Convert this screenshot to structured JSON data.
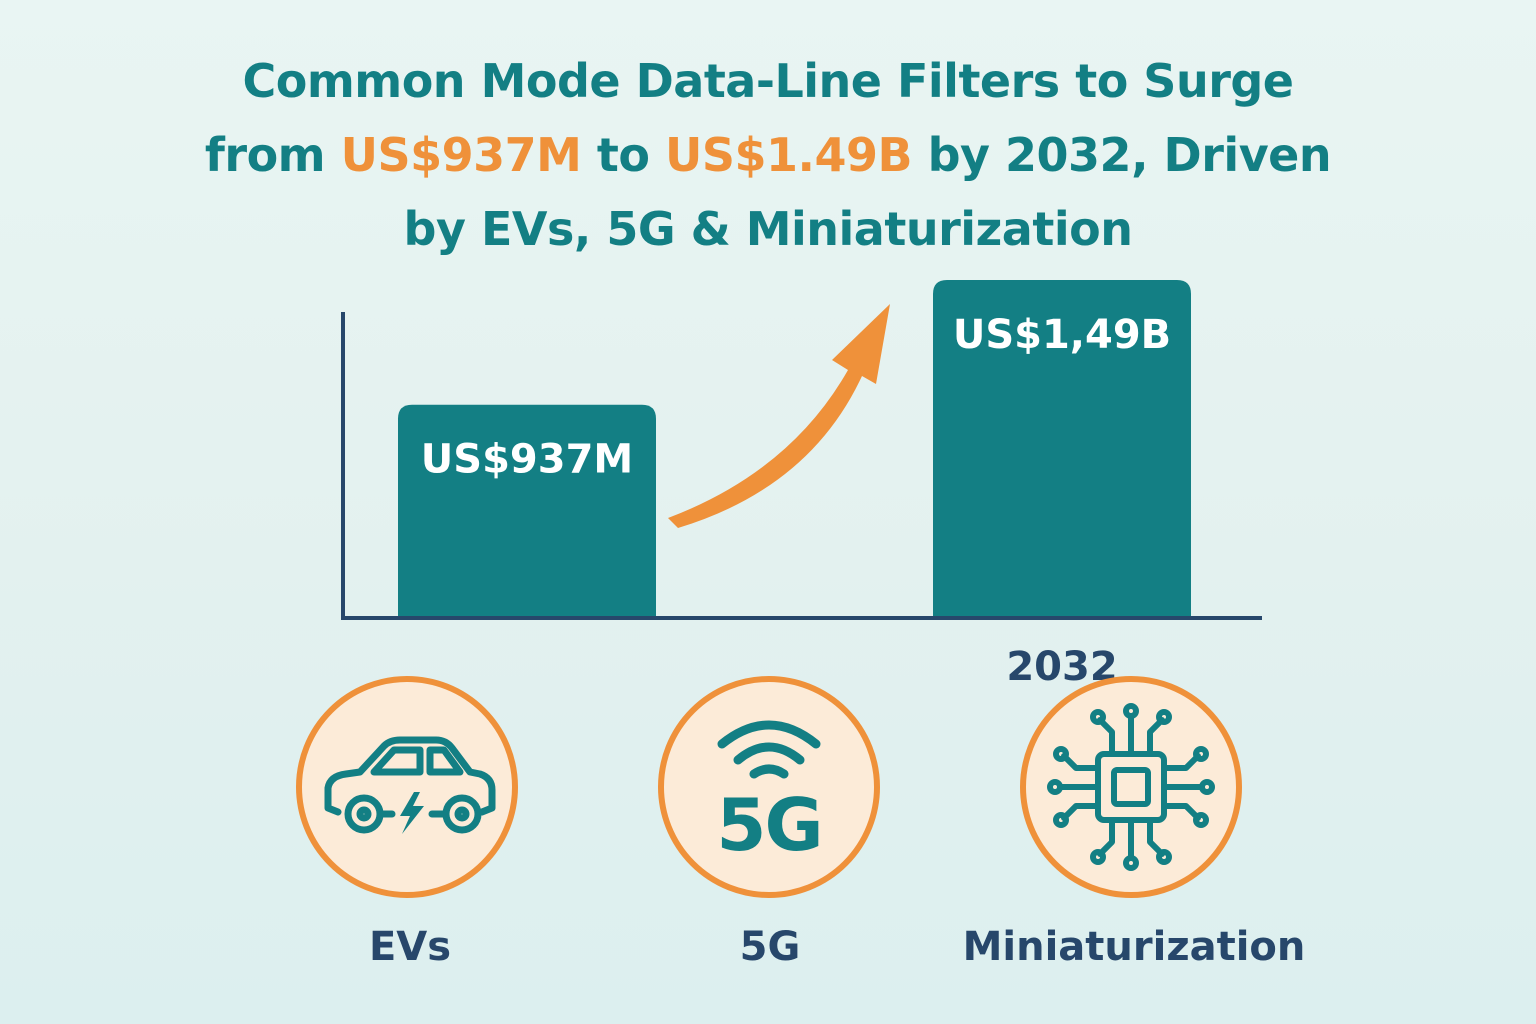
{
  "title": {
    "line1": "Common Mode Data-Line Filters to Surge",
    "line2_pre": "from ",
    "line2_hl1": "US$937M",
    "line2_mid": " to ",
    "line2_hl2": "US$1.49B",
    "line2_post": " by 2032, Driven",
    "line3": "by EVs, 5G & Miniaturization"
  },
  "chart_data": {
    "type": "bar",
    "categories": [
      "",
      "2032"
    ],
    "values": [
      0.937,
      1.49
    ],
    "unit": "US$ billions",
    "data_labels": [
      "US$937M",
      "US$1,49B"
    ],
    "x_tick_labels": [
      "",
      "2032"
    ],
    "title": "",
    "xlabel": "",
    "ylabel": "",
    "ylim": [
      0,
      1.49
    ],
    "annotations": [
      "upward-trend-arrow"
    ]
  },
  "drivers": [
    {
      "label": "EVs",
      "icon": "ev-car-icon"
    },
    {
      "label": "5G",
      "icon": "5g-signal-icon",
      "icon_text": "5G"
    },
    {
      "label": "Miniaturization",
      "icon": "microchip-icon"
    }
  ],
  "colors": {
    "teal": "#137f84",
    "orange": "#ef913a",
    "navy": "#27476b",
    "circle_fill": "#fcebd8"
  }
}
